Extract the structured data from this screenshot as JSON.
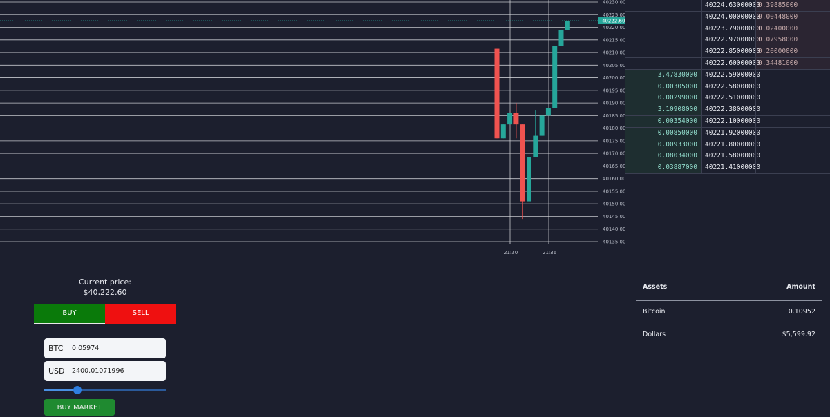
{
  "chart_data": {
    "type": "candlestick",
    "y_ticks": [
      "40230.00",
      "40225.00",
      "40220.00",
      "40215.00",
      "40210.00",
      "40205.00",
      "40200.00",
      "40195.00",
      "40190.00",
      "40185.00",
      "40180.00",
      "40175.00",
      "40170.00",
      "40165.00",
      "40160.00",
      "40155.00",
      "40150.00",
      "40145.00",
      "40140.00",
      "40135.00"
    ],
    "ylim": [
      40135,
      40230
    ],
    "x_ticks": [
      "21:30",
      "21:36"
    ],
    "last_price_label": "40222.60",
    "candles": [
      {
        "open": 40211.5,
        "high": 40211.5,
        "low": 40176,
        "close": 40176
      },
      {
        "open": 40176,
        "high": 40181.5,
        "low": 40176,
        "close": 40181.5
      },
      {
        "open": 40181.5,
        "high": 40186,
        "low": 40181.5,
        "close": 40186
      },
      {
        "open": 40186,
        "high": 40190,
        "low": 40176,
        "close": 40181.5
      },
      {
        "open": 40181.5,
        "high": 40181.5,
        "low": 40144,
        "close": 40151
      },
      {
        "open": 40151,
        "high": 40168.5,
        "low": 40151,
        "close": 40168.5
      },
      {
        "open": 40168.5,
        "high": 40187,
        "low": 40168.5,
        "close": 40177
      },
      {
        "open": 40177,
        "high": 40185,
        "low": 40177,
        "close": 40185
      },
      {
        "open": 40185,
        "high": 40188,
        "low": 40185,
        "close": 40188
      },
      {
        "open": 40188,
        "high": 40212.5,
        "low": 40188,
        "close": 40212.5
      },
      {
        "open": 40212.5,
        "high": 40219,
        "low": 40212.5,
        "close": 40219
      },
      {
        "open": 40219,
        "high": 40222.6,
        "low": 40219,
        "close": 40222.6
      }
    ],
    "colors": {
      "up": "#26a69a",
      "down": "#ef5350",
      "grid": "#d7d9de",
      "background": "#1c1f2e",
      "price_tag": "#26a69a"
    }
  },
  "orderbook": {
    "asks": [
      {
        "price": "40224.63000000",
        "amount": "0.39885000"
      },
      {
        "price": "40224.00000000",
        "amount": "0.00448000"
      },
      {
        "price": "40223.79000000",
        "amount": "0.02400000"
      },
      {
        "price": "40222.97000000",
        "amount": "0.07958000"
      },
      {
        "price": "40222.85000000",
        "amount": "0.20000000"
      },
      {
        "price": "40222.60000000",
        "amount": "0.34481000"
      }
    ],
    "bids": [
      {
        "amount": "3.47830000",
        "price": "40222.59000000"
      },
      {
        "amount": "0.00305000",
        "price": "40222.58000000"
      },
      {
        "amount": "0.00299000",
        "price": "40222.51000000"
      },
      {
        "amount": "3.10908000",
        "price": "40222.38000000"
      },
      {
        "amount": "0.00354000",
        "price": "40222.10000000"
      },
      {
        "amount": "0.00850000",
        "price": "40221.92000000"
      },
      {
        "amount": "0.00933000",
        "price": "40221.80000000"
      },
      {
        "amount": "0.08034000",
        "price": "40221.58000000"
      },
      {
        "amount": "0.03887000",
        "price": "40221.41000000"
      }
    ]
  },
  "trade": {
    "current_price_label": "Current price:",
    "current_price_value": "$40,222.60",
    "buy_tab": "BUY",
    "sell_tab": "SELL",
    "btc_unit": "BTC",
    "btc_value": "0.05974",
    "usd_unit": "USD",
    "usd_value": "2400.01071996",
    "slider_fraction": 0.27,
    "buy_market_label": "BUY MARKET"
  },
  "assets": {
    "header_name": "Assets",
    "header_amount": "Amount",
    "rows": [
      {
        "name": "Bitcoin",
        "amount": "0.10952"
      },
      {
        "name": "Dollars",
        "amount": "$5,599.92"
      }
    ]
  }
}
